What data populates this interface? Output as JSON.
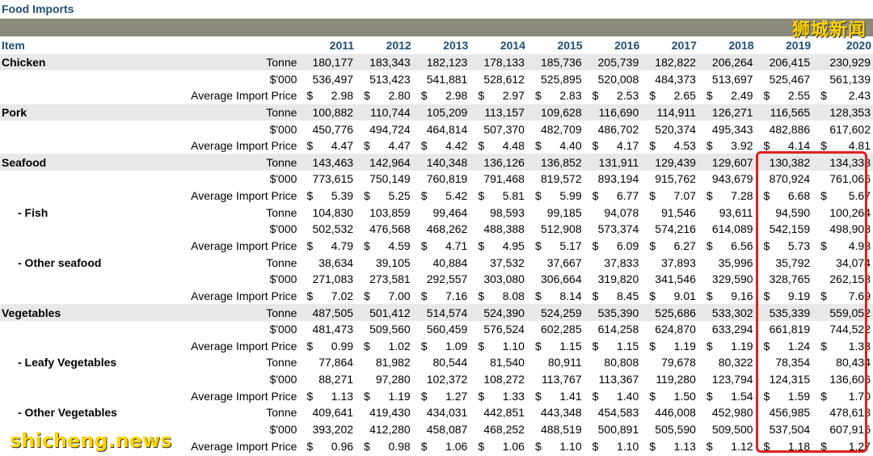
{
  "title": "Food Imports",
  "watermark_top": "狮城新闻",
  "watermark_bottom": "shicheng.news",
  "header": {
    "item": "Item",
    "years": [
      "2011",
      "2012",
      "2013",
      "2014",
      "2015",
      "2016",
      "2017",
      "2018",
      "2019",
      "2020"
    ]
  },
  "rows": [
    {
      "item": "Chicken",
      "sub": false,
      "hl": true,
      "unit": "Tonne",
      "values": [
        "180,177",
        "183,343",
        "182,123",
        "178,133",
        "185,736",
        "205,739",
        "182,822",
        "206,264",
        "206,415",
        "230,929"
      ]
    },
    {
      "item": "",
      "sub": false,
      "hl": false,
      "unit": "$'000",
      "values": [
        "536,497",
        "513,423",
        "541,881",
        "528,612",
        "525,895",
        "520,008",
        "484,373",
        "513,697",
        "525,467",
        "561,139"
      ]
    },
    {
      "item": "",
      "sub": false,
      "hl": false,
      "unit": "Average Import Price",
      "price": true,
      "values": [
        "2.98",
        "2.80",
        "2.98",
        "2.97",
        "2.83",
        "2.53",
        "2.65",
        "2.49",
        "2.55",
        "2.43"
      ]
    },
    {
      "item": "Pork",
      "sub": false,
      "hl": true,
      "unit": "Tonne",
      "values": [
        "100,882",
        "110,744",
        "105,209",
        "113,157",
        "109,628",
        "116,690",
        "114,911",
        "126,271",
        "116,565",
        "128,353"
      ]
    },
    {
      "item": "",
      "sub": false,
      "hl": false,
      "unit": "$'000",
      "values": [
        "450,776",
        "494,724",
        "464,814",
        "507,370",
        "482,709",
        "486,702",
        "520,374",
        "495,343",
        "482,886",
        "617,602"
      ]
    },
    {
      "item": "",
      "sub": false,
      "hl": false,
      "unit": "Average Import Price",
      "price": true,
      "values": [
        "4.47",
        "4.47",
        "4.42",
        "4.48",
        "4.40",
        "4.17",
        "4.53",
        "3.92",
        "4.14",
        "4.81"
      ]
    },
    {
      "item": "Seafood",
      "sub": false,
      "hl": true,
      "unit": "Tonne",
      "values": [
        "143,463",
        "142,964",
        "140,348",
        "136,126",
        "136,852",
        "131,911",
        "129,439",
        "129,607",
        "130,382",
        "134,338"
      ]
    },
    {
      "item": "",
      "sub": false,
      "hl": false,
      "unit": "$'000",
      "values": [
        "773,615",
        "750,149",
        "760,819",
        "791,468",
        "819,572",
        "893,194",
        "915,762",
        "943,679",
        "870,924",
        "761,066"
      ]
    },
    {
      "item": "",
      "sub": false,
      "hl": false,
      "unit": "Average Import Price",
      "price": true,
      "values": [
        "5.39",
        "5.25",
        "5.42",
        "5.81",
        "5.99",
        "6.77",
        "7.07",
        "7.28",
        "6.68",
        "5.67"
      ]
    },
    {
      "item": "- Fish",
      "sub": true,
      "hl": false,
      "unit": "Tonne",
      "values": [
        "104,830",
        "103,859",
        "99,464",
        "98,593",
        "99,185",
        "94,078",
        "91,546",
        "93,611",
        "94,590",
        "100,264"
      ]
    },
    {
      "item": "",
      "sub": false,
      "hl": false,
      "unit": "$'000",
      "values": [
        "502,532",
        "476,568",
        "468,262",
        "488,388",
        "512,908",
        "573,374",
        "574,216",
        "614,089",
        "542,159",
        "498,908"
      ]
    },
    {
      "item": "",
      "sub": false,
      "hl": false,
      "unit": "Average Import Price",
      "price": true,
      "values": [
        "4.79",
        "4.59",
        "4.71",
        "4.95",
        "5.17",
        "6.09",
        "6.27",
        "6.56",
        "5.73",
        "4.98"
      ]
    },
    {
      "item": "- Other seafood",
      "sub": true,
      "hl": false,
      "unit": "Tonne",
      "values": [
        "38,634",
        "39,105",
        "40,884",
        "37,532",
        "37,667",
        "37,833",
        "37,893",
        "35,996",
        "35,792",
        "34,074"
      ]
    },
    {
      "item": "",
      "sub": false,
      "hl": false,
      "unit": "$'000",
      "values": [
        "271,083",
        "273,581",
        "292,557",
        "303,080",
        "306,664",
        "319,820",
        "341,546",
        "329,590",
        "328,765",
        "262,158"
      ]
    },
    {
      "item": "",
      "sub": false,
      "hl": false,
      "unit": "Average Import Price",
      "price": true,
      "values": [
        "7.02",
        "7.00",
        "7.16",
        "8.08",
        "8.14",
        "8.45",
        "9.01",
        "9.16",
        "9.19",
        "7.69"
      ]
    },
    {
      "item": "Vegetables",
      "sub": false,
      "hl": true,
      "unit": "Tonne",
      "values": [
        "487,505",
        "501,412",
        "514,574",
        "524,390",
        "524,259",
        "535,390",
        "525,686",
        "533,302",
        "535,339",
        "559,052"
      ]
    },
    {
      "item": "",
      "sub": false,
      "hl": false,
      "unit": "$'000",
      "values": [
        "481,473",
        "509,560",
        "560,459",
        "576,524",
        "602,285",
        "614,258",
        "624,870",
        "633,294",
        "661,819",
        "744,522"
      ]
    },
    {
      "item": "",
      "sub": false,
      "hl": false,
      "unit": "Average Import Price",
      "price": true,
      "values": [
        "0.99",
        "1.02",
        "1.09",
        "1.10",
        "1.15",
        "1.15",
        "1.19",
        "1.19",
        "1.24",
        "1.33"
      ]
    },
    {
      "item": "- Leafy Vegetables",
      "sub": true,
      "hl": false,
      "unit": "Tonne",
      "values": [
        "77,864",
        "81,982",
        "80,544",
        "81,540",
        "80,911",
        "80,808",
        "79,678",
        "80,322",
        "78,354",
        "80,434"
      ]
    },
    {
      "item": "",
      "sub": false,
      "hl": false,
      "unit": "$'000",
      "values": [
        "88,271",
        "97,280",
        "102,372",
        "108,272",
        "113,767",
        "113,367",
        "119,280",
        "123,794",
        "124,315",
        "136,606"
      ]
    },
    {
      "item": "",
      "sub": false,
      "hl": false,
      "unit": "Average Import Price",
      "price": true,
      "values": [
        "1.13",
        "1.19",
        "1.27",
        "1.33",
        "1.41",
        "1.40",
        "1.50",
        "1.54",
        "1.59",
        "1.70"
      ]
    },
    {
      "item": "- Other Vegetables",
      "sub": true,
      "hl": false,
      "unit": "Tonne",
      "values": [
        "409,641",
        "419,430",
        "434,031",
        "442,851",
        "443,348",
        "454,583",
        "446,008",
        "452,980",
        "456,985",
        "478,618"
      ]
    },
    {
      "item": "",
      "sub": false,
      "hl": false,
      "unit": "$'000",
      "values": [
        "393,202",
        "412,280",
        "458,087",
        "468,252",
        "488,519",
        "500,891",
        "505,590",
        "509,500",
        "537,504",
        "607,916"
      ]
    },
    {
      "item": "",
      "sub": false,
      "hl": false,
      "unit": "Average Import Price",
      "price": true,
      "values": [
        "0.96",
        "0.98",
        "1.06",
        "1.06",
        "1.10",
        "1.10",
        "1.13",
        "1.12",
        "1.18",
        "1.27"
      ]
    }
  ]
}
